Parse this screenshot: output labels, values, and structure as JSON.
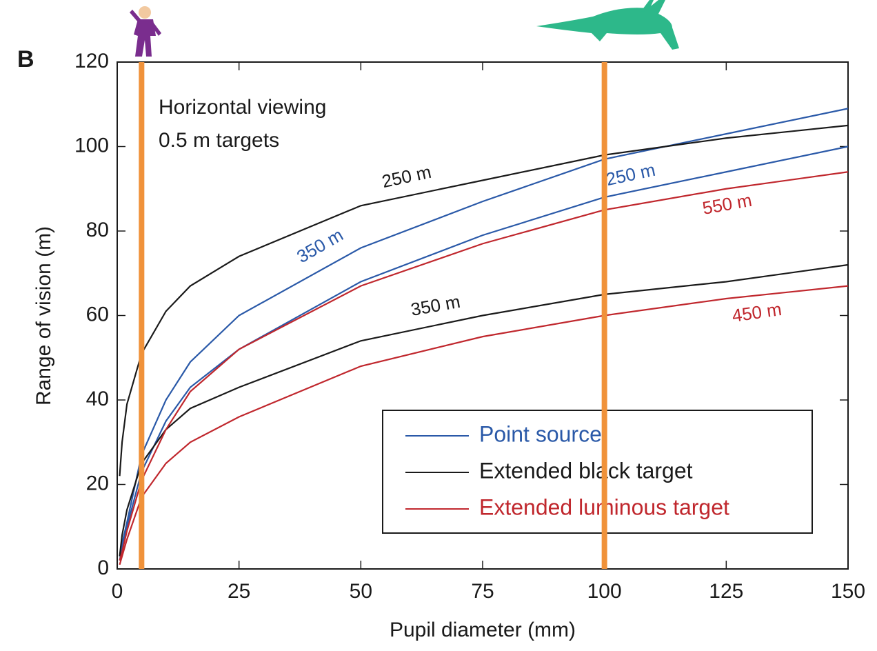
{
  "chart_data": {
    "type": "line",
    "panel_label": "B",
    "annotations": [
      "Horizontal viewing",
      "0.5 m targets"
    ],
    "xlabel": "Pupil diameter (mm)",
    "ylabel": "Range of vision (m)",
    "x": [
      0.5,
      1,
      2,
      5,
      10,
      15,
      25,
      50,
      75,
      100,
      125,
      150
    ],
    "xlim": [
      0,
      150
    ],
    "xticks": [
      0,
      25,
      50,
      75,
      100,
      125,
      150
    ],
    "ylim": [
      0,
      120
    ],
    "yticks": [
      0,
      20,
      40,
      60,
      80,
      100,
      120
    ],
    "legend": "lower right",
    "series": [
      {
        "name": "Point source",
        "color": "#2a59a8",
        "curves": [
          {
            "label": "250 m",
            "values": [
              3,
              6,
              11,
              27,
              40,
              49,
              60,
              76,
              87,
              97,
              103,
              109
            ]
          },
          {
            "label": "350 m",
            "values": [
              2,
              5,
              10,
              23,
              35,
              43,
              52,
              68,
              79,
              88,
              94,
              100
            ]
          }
        ]
      },
      {
        "name": "Extended black target",
        "color": "#1a1a1a",
        "curves": [
          {
            "label": "250 m",
            "values": [
              22,
              30,
              39,
              51,
              61,
              67,
              74,
              86,
              92,
              98,
              102,
              105
            ]
          },
          {
            "label": "350 m",
            "values": [
              3,
              8,
              14,
              25,
              33,
              38,
              43,
              54,
              60,
              65,
              68,
              72
            ]
          }
        ]
      },
      {
        "name": "Extended luminous target",
        "color": "#c0272d",
        "curves": [
          {
            "label": "550 m",
            "values": [
              2,
              4,
              9,
              21,
              33,
              42,
              52,
              67,
              77,
              85,
              90,
              94
            ]
          },
          {
            "label": "450 m",
            "values": [
              1,
              3,
              7,
              17,
              25,
              30,
              36,
              48,
              55,
              60,
              64,
              67
            ]
          }
        ]
      }
    ],
    "vlines": [
      5,
      100
    ],
    "vline_color": "#f0923a"
  }
}
